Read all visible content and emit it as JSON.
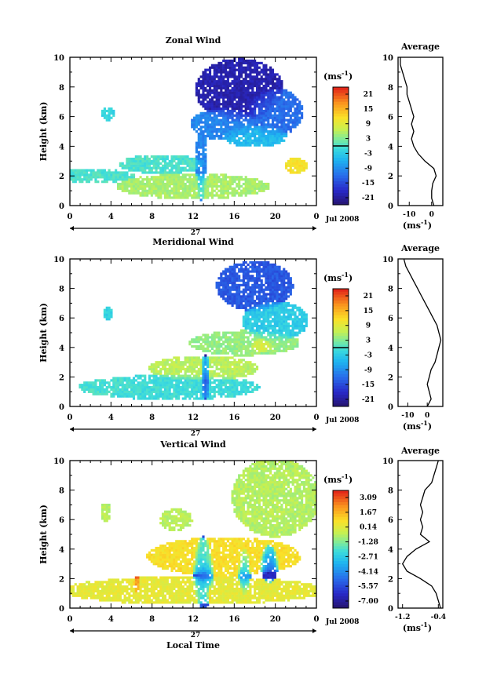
{
  "chart_data": [
    {
      "type": "heatmap",
      "title": "Zonal Wind",
      "xlabel": "",
      "ylabel": "Height (km)",
      "unit_label": "(ms",
      "unit_exp": "-1",
      "xticks": [
        "0",
        "4",
        "8",
        "12",
        "16",
        "20",
        "0"
      ],
      "yticks": [
        "0",
        "2",
        "4",
        "6",
        "8",
        "10"
      ],
      "xlim": [
        0,
        24
      ],
      "ylim": [
        0,
        10
      ],
      "day_label": "27",
      "date_label": "Jul 2008",
      "colorbar": {
        "ticks": [
          "21",
          "15",
          "9",
          "3",
          "-3",
          "-9",
          "-15",
          "-21"
        ],
        "range": [
          -24,
          24
        ]
      },
      "blobs": [
        {
          "x": 16.5,
          "w": 8,
          "y": 7.8,
          "h": 4,
          "v": -20
        },
        {
          "x": 20,
          "w": 5,
          "y": 6.3,
          "h": 3,
          "v": -12
        },
        {
          "x": 15,
          "w": 6,
          "y": 5.5,
          "h": 2,
          "v": -10
        },
        {
          "x": 18,
          "w": 6,
          "y": 4.7,
          "h": 1.4,
          "v": -5
        },
        {
          "x": 9,
          "w": 8,
          "y": 2.8,
          "h": 1.2,
          "v": 0
        },
        {
          "x": 12,
          "w": 14,
          "y": 1.3,
          "h": 1.6,
          "v": 5
        },
        {
          "x": 2,
          "w": 8,
          "y": 2,
          "h": 0.9,
          "v": 0
        },
        {
          "x": 3.7,
          "w": 1.2,
          "y": 6.2,
          "h": 0.9,
          "v": -2
        },
        {
          "x": 12.8,
          "w": 1,
          "y": 3,
          "h": 5,
          "v": -10
        },
        {
          "x": 22,
          "w": 2,
          "y": 2.7,
          "h": 1,
          "v": 11
        }
      ],
      "profile": {
        "title": "Average",
        "xlabel": "(ms",
        "xlabel_exp": "-1",
        "xticks": [
          "-10",
          "0"
        ],
        "xlim": [
          -15,
          5
        ],
        "z": [
          0,
          0.5,
          1,
          1.5,
          2,
          2.5,
          3,
          3.5,
          4,
          4.5,
          5,
          5.5,
          6,
          6.5,
          7,
          7.5,
          8,
          8.5,
          9,
          9.5,
          10
        ],
        "v": [
          1,
          0,
          0,
          0.5,
          2,
          1,
          -3,
          -6,
          -8,
          -9,
          -8,
          -9,
          -8,
          -9,
          -10,
          -11,
          -11,
          -12,
          -13,
          -14,
          -14
        ]
      }
    },
    {
      "type": "heatmap",
      "title": "Meridional Wind",
      "xlabel": "",
      "ylabel": "Height (km)",
      "unit_label": "(ms",
      "unit_exp": "-1",
      "xticks": [
        "0",
        "4",
        "8",
        "12",
        "16",
        "20",
        "0"
      ],
      "yticks": [
        "0",
        "2",
        "4",
        "6",
        "8",
        "10"
      ],
      "xlim": [
        0,
        24
      ],
      "ylim": [
        0,
        10
      ],
      "day_label": "27",
      "date_label": "Jul 2008",
      "colorbar": {
        "ticks": [
          "21",
          "15",
          "9",
          "3",
          "-3",
          "-9",
          "-15",
          "-21"
        ],
        "range": [
          -24,
          24
        ]
      },
      "blobs": [
        {
          "x": 18,
          "w": 7,
          "y": 8.2,
          "h": 3.2,
          "v": -14
        },
        {
          "x": 20,
          "w": 6,
          "y": 5.8,
          "h": 2.5,
          "v": -3
        },
        {
          "x": 17,
          "w": 10,
          "y": 4.3,
          "h": 1.6,
          "v": 4
        },
        {
          "x": 18.6,
          "w": 2,
          "y": 4.1,
          "h": 0.9,
          "v": 12
        },
        {
          "x": 13,
          "w": 10,
          "y": 2.6,
          "h": 1.6,
          "v": 6
        },
        {
          "x": 10,
          "w": 16,
          "y": 1.3,
          "h": 1.6,
          "v": -1
        },
        {
          "x": 4,
          "w": 6,
          "y": 1.3,
          "h": 1,
          "v": 0
        },
        {
          "x": 3.7,
          "w": 1,
          "y": 6.3,
          "h": 0.8,
          "v": -2
        },
        {
          "x": 13.2,
          "w": 0.8,
          "y": 2,
          "h": 3,
          "v": -22
        }
      ],
      "profile": {
        "title": "Average",
        "xlabel": "(ms",
        "xlabel_exp": "-1",
        "xticks": [
          "-10",
          "0"
        ],
        "xlim": [
          -15,
          8
        ],
        "z": [
          0,
          0.5,
          1,
          1.5,
          2,
          2.5,
          3,
          3.5,
          4,
          4.5,
          5,
          5.5,
          6,
          6.5,
          7,
          7.5,
          8,
          8.5,
          9,
          9.5,
          10
        ],
        "v": [
          0,
          2,
          1,
          0,
          1,
          2,
          4,
          5,
          6,
          7,
          6,
          5,
          3,
          1,
          -1,
          -3,
          -5,
          -7,
          -9,
          -11,
          -12
        ]
      }
    },
    {
      "type": "heatmap",
      "title": "Vertical Wind",
      "xlabel": "Local Time",
      "ylabel": "Height (km)",
      "unit_label": "(ms",
      "unit_exp": "-1",
      "xticks": [
        "0",
        "4",
        "8",
        "12",
        "16",
        "20",
        "0"
      ],
      "yticks": [
        "0",
        "2",
        "4",
        "6",
        "8",
        "10"
      ],
      "xlim": [
        0,
        24
      ],
      "ylim": [
        0,
        10
      ],
      "day_label": "27",
      "date_label": "Jul 2008",
      "colorbar": {
        "ticks": [
          "3.09",
          "1.67",
          "0.14",
          "-1.28",
          "-2.71",
          "-4.14",
          "-5.57",
          "-7.00"
        ],
        "range": [
          -7.7,
          3.8
        ]
      },
      "blobs": [
        {
          "x": 20,
          "w": 8,
          "y": 7.5,
          "h": 5,
          "v": -0.6
        },
        {
          "x": 12,
          "w": 24,
          "y": 1.2,
          "h": 1.8,
          "v": 0.3
        },
        {
          "x": 15,
          "w": 14,
          "y": 3.5,
          "h": 2.5,
          "v": 0.8
        },
        {
          "x": 10.3,
          "w": 3,
          "y": 6,
          "h": 1.4,
          "v": -0.5
        },
        {
          "x": 3.5,
          "w": 1,
          "y": 6.5,
          "h": 1.2,
          "v": -0.6
        },
        {
          "x": 6.5,
          "w": 0.6,
          "y": 1.6,
          "h": 1.2,
          "v": 3
        },
        {
          "x": 13,
          "w": 1.8,
          "y": 2.4,
          "h": 4.6,
          "v": -5.5
        },
        {
          "x": 17,
          "w": 1.1,
          "y": 2.5,
          "h": 3,
          "v": -4
        },
        {
          "x": 19.4,
          "w": 1.6,
          "y": 3,
          "h": 2.5,
          "v": -6.5
        },
        {
          "x": 13.6,
          "w": 0.4,
          "y": 1,
          "h": 1,
          "v": 3
        }
      ],
      "profile": {
        "title": "Average",
        "xlabel": "(ms",
        "xlabel_exp": "-1",
        "xticks": [
          "-1.2",
          "-0.4"
        ],
        "xlim": [
          -1.3,
          -0.3
        ],
        "z": [
          0,
          0.5,
          1,
          1.5,
          2,
          2.5,
          3,
          3.5,
          4,
          4.5,
          5,
          5.5,
          6,
          6.5,
          7,
          7.5,
          8,
          8.5,
          9,
          9.5,
          10
        ],
        "v": [
          -0.35,
          -0.4,
          -0.45,
          -0.55,
          -0.8,
          -1.1,
          -1.2,
          -1.1,
          -0.9,
          -0.6,
          -0.8,
          -0.75,
          -0.8,
          -0.75,
          -0.8,
          -0.75,
          -0.7,
          -0.55,
          -0.5,
          -0.45,
          -0.4
        ]
      }
    }
  ]
}
